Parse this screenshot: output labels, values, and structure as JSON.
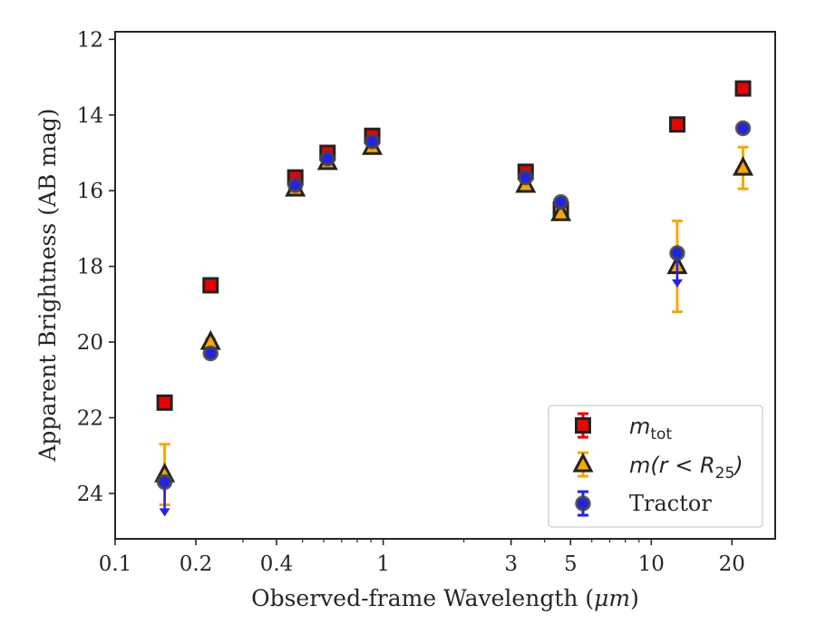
{
  "chart_data": {
    "type": "scatter",
    "xlabel_prefix": "Observed-frame Wavelength (",
    "xlabel_unit": "μm",
    "xlabel_suffix": ")",
    "ylabel": "Apparent Brightness (AB mag)",
    "x_scale": "log",
    "xlim": [
      0.1,
      29
    ],
    "ylim": [
      25.2,
      11.8
    ],
    "y_inverted": true,
    "grid": false,
    "legend_position": "lower-right",
    "x_ticks": [
      {
        "value": 0.1,
        "label": "0.1"
      },
      {
        "value": 0.2,
        "label": "0.2"
      },
      {
        "value": 0.4,
        "label": "0.4"
      },
      {
        "value": 1,
        "label": "1"
      },
      {
        "value": 3,
        "label": "3"
      },
      {
        "value": 5,
        "label": "5"
      },
      {
        "value": 10,
        "label": "10"
      },
      {
        "value": 20,
        "label": "20"
      }
    ],
    "x_minor_ticks": [
      0.3,
      0.5,
      0.6,
      0.7,
      0.8,
      0.9,
      2,
      4,
      6,
      7,
      8,
      9,
      30
    ],
    "y_ticks": [
      12,
      14,
      16,
      18,
      20,
      22,
      24
    ],
    "series": [
      {
        "name": "m_tot",
        "legend_main": "m",
        "legend_sub": "tot",
        "marker": "square",
        "color": "#ee0000",
        "edge": "#222222",
        "errcolor": "#ee0000",
        "points": [
          {
            "x": 0.153,
            "y": 21.6,
            "err": 0.08
          },
          {
            "x": 0.227,
            "y": 18.5,
            "err": 0.08
          },
          {
            "x": 0.47,
            "y": 15.65,
            "err": 0.1
          },
          {
            "x": 0.62,
            "y": 15.0,
            "err": 0.1
          },
          {
            "x": 0.91,
            "y": 14.55,
            "err": 0.1
          },
          {
            "x": 3.4,
            "y": 15.5,
            "err": 0.1
          },
          {
            "x": 4.6,
            "y": 16.5,
            "err": 0.1
          },
          {
            "x": 12.5,
            "y": 14.25,
            "err": 0.08
          },
          {
            "x": 22.0,
            "y": 13.3,
            "err": 0.08
          }
        ]
      },
      {
        "name": "m(r < R25)",
        "legend_main": "m(r < R",
        "legend_sub": "25",
        "legend_close": ")",
        "marker": "triangle",
        "color": "#f5a800",
        "edge": "#222222",
        "errcolor": "#f5a800",
        "points": [
          {
            "x": 0.153,
            "y": 23.5,
            "err": 0.8
          },
          {
            "x": 0.227,
            "y": 20.0,
            "err": 0.08
          },
          {
            "x": 0.47,
            "y": 15.95,
            "err": 0.1
          },
          {
            "x": 0.62,
            "y": 15.25,
            "err": 0.1
          },
          {
            "x": 0.91,
            "y": 14.85,
            "err": 0.1
          },
          {
            "x": 3.4,
            "y": 15.85,
            "err": 0.1
          },
          {
            "x": 4.6,
            "y": 16.6,
            "err": 0.1
          },
          {
            "x": 12.5,
            "y": 18.0,
            "err": 1.2
          },
          {
            "x": 22.0,
            "y": 15.4,
            "err": 0.55
          }
        ]
      },
      {
        "name": "Tractor",
        "legend_main": "Tractor",
        "marker": "circle",
        "color": "#2222ee",
        "edge": "#444444",
        "errcolor": "#2222ee",
        "points": [
          {
            "x": 0.153,
            "y": 23.7,
            "upper_limit": true
          },
          {
            "x": 0.227,
            "y": 20.3,
            "err": 0.05
          },
          {
            "x": 0.47,
            "y": 15.85,
            "err": 0.05
          },
          {
            "x": 0.62,
            "y": 15.15,
            "err": 0.05
          },
          {
            "x": 0.91,
            "y": 14.7,
            "err": 0.05
          },
          {
            "x": 3.4,
            "y": 15.65,
            "err": 0.05
          },
          {
            "x": 4.6,
            "y": 16.3,
            "err": 0.05
          },
          {
            "x": 12.5,
            "y": 17.65,
            "upper_limit": true
          },
          {
            "x": 22.0,
            "y": 14.35,
            "err": 0.05
          }
        ]
      }
    ]
  }
}
